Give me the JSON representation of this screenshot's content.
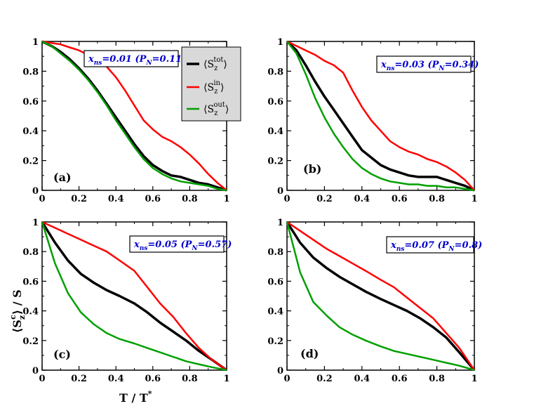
{
  "colors": {
    "tot": "#000000",
    "in": "#ff0000",
    "out": "#00a000",
    "annotation": "#0000cc",
    "legend_bg": "#d9d9d9"
  },
  "figure": {
    "xlabel": {
      "main": "T / T",
      "sup": "*"
    },
    "ylabel": {
      "open": "⟨S",
      "sub": "z",
      "sup": "c",
      "close": "⟩ / S"
    },
    "legend": [
      {
        "series": "tot",
        "prefix": "⟨S",
        "sub": "z",
        "sup": "tot",
        "suffix": "⟩"
      },
      {
        "series": "in",
        "prefix": "⟨S",
        "sub": "z",
        "sup": "in",
        "suffix": "⟩"
      },
      {
        "series": "out",
        "prefix": "⟨S",
        "sub": "z",
        "sup": "out",
        "suffix": "⟩"
      }
    ]
  },
  "chart_data": [
    {
      "type": "line",
      "panel": "(a)",
      "annotation": {
        "x": "x",
        "x_sub": "ns",
        "x_val": "=0.01 (P",
        "p_sub": "N",
        "p_val": "=0.11)"
      },
      "xlim": [
        0,
        1
      ],
      "ylim": [
        0,
        1
      ],
      "xticks": [
        "0",
        "0.2",
        "0.4",
        "0.6",
        "0.8",
        "1"
      ],
      "yticks": [
        "0",
        "0.2",
        "0.4",
        "0.6",
        "0.8",
        "1"
      ],
      "series": [
        {
          "name": "tot",
          "x": [
            0,
            0.05,
            0.1,
            0.15,
            0.2,
            0.25,
            0.3,
            0.35,
            0.4,
            0.45,
            0.5,
            0.55,
            0.6,
            0.65,
            0.7,
            0.75,
            0.8,
            0.85,
            0.9,
            0.95,
            1.0
          ],
          "y": [
            1.0,
            0.97,
            0.93,
            0.88,
            0.82,
            0.75,
            0.67,
            0.58,
            0.49,
            0.4,
            0.31,
            0.23,
            0.17,
            0.13,
            0.1,
            0.09,
            0.07,
            0.05,
            0.04,
            0.02,
            0.0
          ]
        },
        {
          "name": "in",
          "x": [
            0,
            0.05,
            0.1,
            0.15,
            0.2,
            0.25,
            0.3,
            0.35,
            0.4,
            0.45,
            0.5,
            0.55,
            0.6,
            0.65,
            0.7,
            0.75,
            0.8,
            0.85,
            0.9,
            0.95,
            1.0
          ],
          "y": [
            1.0,
            0.99,
            0.98,
            0.96,
            0.94,
            0.91,
            0.88,
            0.83,
            0.76,
            0.67,
            0.57,
            0.47,
            0.41,
            0.36,
            0.33,
            0.29,
            0.24,
            0.18,
            0.11,
            0.05,
            0.0
          ]
        },
        {
          "name": "out",
          "x": [
            0,
            0.05,
            0.1,
            0.15,
            0.2,
            0.25,
            0.3,
            0.35,
            0.4,
            0.45,
            0.5,
            0.55,
            0.6,
            0.65,
            0.7,
            0.75,
            0.8,
            0.85,
            0.9,
            0.95,
            1.0
          ],
          "y": [
            1.0,
            0.97,
            0.92,
            0.87,
            0.81,
            0.74,
            0.66,
            0.57,
            0.47,
            0.38,
            0.29,
            0.21,
            0.15,
            0.11,
            0.08,
            0.06,
            0.05,
            0.04,
            0.03,
            0.01,
            0.0
          ]
        }
      ]
    },
    {
      "type": "line",
      "panel": "(b)",
      "annotation": {
        "x": "x",
        "x_sub": "ns",
        "x_val": "=0.03 (P",
        "p_sub": "N",
        "p_val": "=0.34)"
      },
      "xlim": [
        0,
        1
      ],
      "ylim": [
        0,
        1
      ],
      "xticks": [
        "0",
        "0.2",
        "0.4",
        "0.6",
        "0.8",
        "1"
      ],
      "yticks": [
        "0",
        "0.2",
        "0.4",
        "0.6",
        "0.8",
        "1"
      ],
      "series": [
        {
          "name": "tot",
          "x": [
            0,
            0.05,
            0.1,
            0.15,
            0.2,
            0.25,
            0.3,
            0.35,
            0.4,
            0.45,
            0.5,
            0.55,
            0.6,
            0.65,
            0.7,
            0.75,
            0.8,
            0.85,
            0.9,
            0.95,
            1.0
          ],
          "y": [
            1.0,
            0.94,
            0.84,
            0.73,
            0.63,
            0.54,
            0.45,
            0.36,
            0.27,
            0.22,
            0.17,
            0.14,
            0.12,
            0.1,
            0.09,
            0.09,
            0.09,
            0.07,
            0.05,
            0.03,
            0.0
          ]
        },
        {
          "name": "in",
          "x": [
            0,
            0.05,
            0.1,
            0.15,
            0.2,
            0.25,
            0.3,
            0.35,
            0.4,
            0.45,
            0.5,
            0.55,
            0.6,
            0.65,
            0.7,
            0.75,
            0.8,
            0.85,
            0.9,
            0.95,
            1.0
          ],
          "y": [
            1.0,
            0.97,
            0.94,
            0.91,
            0.87,
            0.84,
            0.79,
            0.67,
            0.56,
            0.47,
            0.4,
            0.33,
            0.29,
            0.26,
            0.24,
            0.21,
            0.19,
            0.16,
            0.12,
            0.07,
            0.0
          ]
        },
        {
          "name": "out",
          "x": [
            0,
            0.05,
            0.1,
            0.15,
            0.2,
            0.25,
            0.3,
            0.35,
            0.4,
            0.45,
            0.5,
            0.55,
            0.6,
            0.65,
            0.7,
            0.75,
            0.8,
            0.85,
            0.9,
            0.95,
            1.0
          ],
          "y": [
            1.0,
            0.92,
            0.78,
            0.62,
            0.49,
            0.38,
            0.29,
            0.21,
            0.15,
            0.11,
            0.08,
            0.06,
            0.05,
            0.04,
            0.04,
            0.03,
            0.03,
            0.02,
            0.02,
            0.01,
            0.0
          ]
        }
      ]
    },
    {
      "type": "line",
      "panel": "(c)",
      "annotation": {
        "x": "x",
        "x_sub": "ns",
        "x_val": "=0.05 (P",
        "p_sub": "N",
        "p_val": "=0.57)"
      },
      "xlim": [
        0,
        1
      ],
      "ylim": [
        0,
        1
      ],
      "xticks": [
        "0",
        "0.2",
        "0.4",
        "0.6",
        "0.8",
        "1"
      ],
      "yticks": [
        "0",
        "0.2",
        "0.4",
        "0.6",
        "0.8",
        "1"
      ],
      "series": [
        {
          "name": "tot",
          "x": [
            0,
            0.07,
            0.14,
            0.21,
            0.28,
            0.35,
            0.42,
            0.5,
            0.57,
            0.64,
            0.71,
            0.78,
            0.85,
            0.92,
            1.0
          ],
          "y": [
            1.0,
            0.86,
            0.74,
            0.65,
            0.59,
            0.54,
            0.5,
            0.45,
            0.39,
            0.32,
            0.26,
            0.2,
            0.13,
            0.07,
            0.0
          ]
        },
        {
          "name": "in",
          "x": [
            0,
            0.07,
            0.14,
            0.21,
            0.28,
            0.35,
            0.42,
            0.5,
            0.57,
            0.64,
            0.71,
            0.78,
            0.85,
            0.92,
            1.0
          ],
          "y": [
            1.0,
            0.96,
            0.92,
            0.88,
            0.84,
            0.8,
            0.74,
            0.67,
            0.56,
            0.45,
            0.36,
            0.25,
            0.15,
            0.07,
            0.0
          ]
        },
        {
          "name": "out",
          "x": [
            0,
            0.07,
            0.14,
            0.21,
            0.28,
            0.35,
            0.42,
            0.5,
            0.57,
            0.64,
            0.71,
            0.78,
            0.85,
            0.92,
            1.0
          ],
          "y": [
            1.0,
            0.72,
            0.52,
            0.39,
            0.31,
            0.25,
            0.21,
            0.18,
            0.15,
            0.12,
            0.09,
            0.06,
            0.04,
            0.02,
            0.0
          ]
        }
      ]
    },
    {
      "type": "line",
      "panel": "(d)",
      "annotation": {
        "x": "x",
        "x_sub": "ns",
        "x_val": "=0.07 (P",
        "p_sub": "N",
        "p_val": "=0.8)"
      },
      "xlim": [
        0,
        1
      ],
      "ylim": [
        0,
        1
      ],
      "xticks": [
        "0",
        "0.2",
        "0.4",
        "0.6",
        "0.8",
        "1"
      ],
      "yticks": [
        "0",
        "0.2",
        "0.4",
        "0.6",
        "0.8",
        "1"
      ],
      "series": [
        {
          "name": "tot",
          "x": [
            0,
            0.07,
            0.14,
            0.21,
            0.28,
            0.35,
            0.42,
            0.5,
            0.57,
            0.64,
            0.71,
            0.78,
            0.85,
            0.92,
            1.0
          ],
          "y": [
            1.0,
            0.86,
            0.76,
            0.69,
            0.63,
            0.58,
            0.53,
            0.48,
            0.44,
            0.4,
            0.35,
            0.29,
            0.22,
            0.12,
            0.0
          ]
        },
        {
          "name": "in",
          "x": [
            0,
            0.07,
            0.14,
            0.21,
            0.28,
            0.35,
            0.42,
            0.5,
            0.57,
            0.64,
            0.71,
            0.78,
            0.85,
            0.92,
            1.0
          ],
          "y": [
            1.0,
            0.94,
            0.88,
            0.82,
            0.77,
            0.72,
            0.67,
            0.61,
            0.56,
            0.49,
            0.42,
            0.35,
            0.25,
            0.15,
            0.0
          ]
        },
        {
          "name": "out",
          "x": [
            0,
            0.07,
            0.14,
            0.21,
            0.28,
            0.35,
            0.42,
            0.5,
            0.57,
            0.64,
            0.71,
            0.78,
            0.85,
            0.92,
            1.0
          ],
          "y": [
            1.0,
            0.66,
            0.46,
            0.37,
            0.29,
            0.24,
            0.2,
            0.16,
            0.13,
            0.11,
            0.09,
            0.07,
            0.05,
            0.03,
            0.0
          ]
        }
      ]
    }
  ]
}
